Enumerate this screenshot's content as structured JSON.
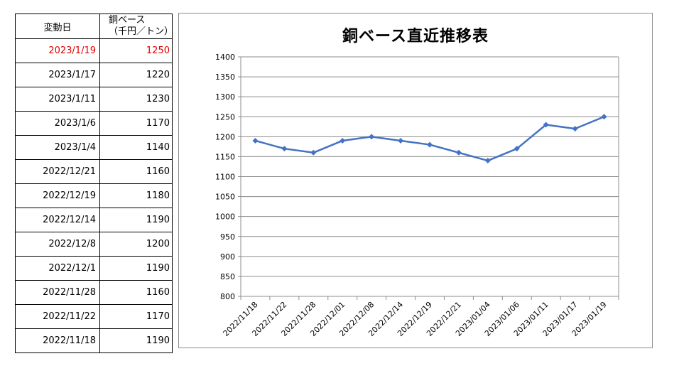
{
  "table": {
    "header": {
      "date": "変動日",
      "value_line1": "銅ベース",
      "value_line2": "（千円／トン）"
    },
    "rows": [
      {
        "date": "2023/1/19",
        "value": "1250"
      },
      {
        "date": "2023/1/17",
        "value": "1220"
      },
      {
        "date": "2023/1/11",
        "value": "1230"
      },
      {
        "date": "2023/1/6",
        "value": "1170"
      },
      {
        "date": "2023/1/4",
        "value": "1140"
      },
      {
        "date": "2022/12/21",
        "value": "1160"
      },
      {
        "date": "2022/12/19",
        "value": "1180"
      },
      {
        "date": "2022/12/14",
        "value": "1190"
      },
      {
        "date": "2022/12/8",
        "value": "1200"
      },
      {
        "date": "2022/12/1",
        "value": "1190"
      },
      {
        "date": "2022/11/28",
        "value": "1160"
      },
      {
        "date": "2022/11/22",
        "value": "1170"
      },
      {
        "date": "2022/11/18",
        "value": "1190"
      }
    ],
    "highlight_color": "#e00000"
  },
  "chart_data": {
    "type": "line",
    "title": "銅ベース直近推移表",
    "xlabel": "",
    "ylabel": "",
    "categories": [
      "2022/11/18",
      "2022/11/22",
      "2022/11/28",
      "2022/12/01",
      "2022/12/08",
      "2022/12/14",
      "2022/12/19",
      "2022/12/21",
      "2023/01/04",
      "2023/01/06",
      "2023/01/11",
      "2023/01/17",
      "2023/01/19"
    ],
    "series": [
      {
        "values": [
          1190,
          1170,
          1160,
          1190,
          1200,
          1190,
          1180,
          1160,
          1140,
          1170,
          1230,
          1220,
          1250
        ],
        "color": "#4472c4"
      }
    ],
    "ylim": [
      800,
      1400
    ],
    "ystep": 50,
    "grid": true,
    "legend": "none"
  }
}
